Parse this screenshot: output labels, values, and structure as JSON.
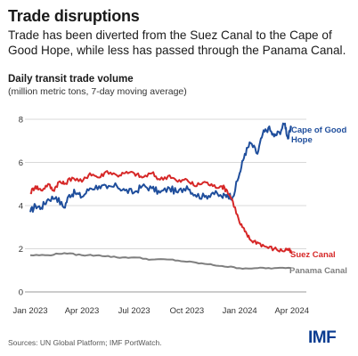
{
  "header": {
    "title": "Trade disruptions",
    "subtitle": "Trade has been diverted from the Suez Canal to the Cape of Good Hope, while less has passed through the Panama Canal."
  },
  "footer": {
    "source": "Sources: UN Global Platform; IMF PortWatch.",
    "logo_text": "IMF"
  },
  "chart_data": {
    "type": "line",
    "title": "Daily transit trade volume",
    "subtitle": "(million metric tons, 7-day moving average)",
    "x_tick_labels": [
      "Jan 2023",
      "Apr 2023",
      "Jul 2023",
      "Oct 2023",
      "Jan 2024",
      "Apr 2024"
    ],
    "xlim": [
      "2023-01-01",
      "2024-04-20"
    ],
    "ylim": [
      0,
      8
    ],
    "y_ticks": [
      0,
      2,
      4,
      6,
      8
    ],
    "grid": "horizontal",
    "legend": "direct labels at line ends",
    "series": [
      {
        "name": "Cape of Good Hope",
        "label_lines": [
          "Cape of Good",
          "Hope"
        ],
        "color": "#1f4e9c",
        "points": [
          [
            "2023-01-01",
            3.7
          ],
          [
            "2023-01-10",
            4.0
          ],
          [
            "2023-01-20",
            3.9
          ],
          [
            "2023-02-01",
            4.3
          ],
          [
            "2023-02-15",
            4.4
          ],
          [
            "2023-03-01",
            3.9
          ],
          [
            "2023-03-10",
            4.5
          ],
          [
            "2023-03-20",
            4.6
          ],
          [
            "2023-04-01",
            4.4
          ],
          [
            "2023-04-15",
            4.8
          ],
          [
            "2023-05-01",
            4.9
          ],
          [
            "2023-05-15",
            4.8
          ],
          [
            "2023-06-01",
            4.9
          ],
          [
            "2023-06-15",
            4.7
          ],
          [
            "2023-07-01",
            4.6
          ],
          [
            "2023-07-15",
            4.9
          ],
          [
            "2023-08-01",
            4.8
          ],
          [
            "2023-08-15",
            4.6
          ],
          [
            "2023-09-01",
            4.8
          ],
          [
            "2023-09-15",
            4.6
          ],
          [
            "2023-10-01",
            4.9
          ],
          [
            "2023-10-15",
            4.5
          ],
          [
            "2023-11-01",
            4.4
          ],
          [
            "2023-11-15",
            4.6
          ],
          [
            "2023-12-01",
            4.4
          ],
          [
            "2023-12-10",
            4.5
          ],
          [
            "2023-12-20",
            4.4
          ],
          [
            "2024-01-01",
            5.5
          ],
          [
            "2024-01-10",
            6.4
          ],
          [
            "2024-01-20",
            6.9
          ],
          [
            "2024-02-01",
            6.4
          ],
          [
            "2024-02-10",
            7.3
          ],
          [
            "2024-02-20",
            7.6
          ],
          [
            "2024-03-01",
            7.2
          ],
          [
            "2024-03-10",
            7.4
          ],
          [
            "2024-03-20",
            7.8
          ],
          [
            "2024-03-25",
            7.1
          ],
          [
            "2024-03-31",
            7.6
          ]
        ]
      },
      {
        "name": "Suez Canal",
        "color": "#d62828",
        "points": [
          [
            "2023-01-01",
            4.6
          ],
          [
            "2023-01-10",
            4.9
          ],
          [
            "2023-01-20",
            4.7
          ],
          [
            "2023-02-01",
            5.0
          ],
          [
            "2023-02-10",
            4.7
          ],
          [
            "2023-02-20",
            5.1
          ],
          [
            "2023-03-01",
            5.0
          ],
          [
            "2023-03-15",
            5.3
          ],
          [
            "2023-04-01",
            5.1
          ],
          [
            "2023-04-15",
            5.5
          ],
          [
            "2023-05-01",
            5.3
          ],
          [
            "2023-05-15",
            5.6
          ],
          [
            "2023-06-01",
            5.4
          ],
          [
            "2023-06-15",
            5.5
          ],
          [
            "2023-07-01",
            5.5
          ],
          [
            "2023-07-15",
            5.3
          ],
          [
            "2023-08-01",
            5.5
          ],
          [
            "2023-08-15",
            5.2
          ],
          [
            "2023-09-01",
            5.4
          ],
          [
            "2023-09-15",
            5.1
          ],
          [
            "2023-10-01",
            5.2
          ],
          [
            "2023-10-15",
            4.9
          ],
          [
            "2023-11-01",
            5.1
          ],
          [
            "2023-11-15",
            4.9
          ],
          [
            "2023-12-01",
            4.9
          ],
          [
            "2023-12-10",
            4.7
          ],
          [
            "2023-12-20",
            4.2
          ],
          [
            "2024-01-01",
            3.2
          ],
          [
            "2024-01-10",
            2.8
          ],
          [
            "2024-01-20",
            2.4
          ],
          [
            "2024-02-01",
            2.3
          ],
          [
            "2024-02-15",
            2.1
          ],
          [
            "2024-03-01",
            2.0
          ],
          [
            "2024-03-15",
            1.9
          ],
          [
            "2024-03-25",
            2.0
          ],
          [
            "2024-03-31",
            1.8
          ]
        ]
      },
      {
        "name": "Panama Canal",
        "color": "#7f7f7f",
        "points": [
          [
            "2023-01-01",
            1.7
          ],
          [
            "2023-02-01",
            1.7
          ],
          [
            "2023-03-01",
            1.8
          ],
          [
            "2023-04-01",
            1.7
          ],
          [
            "2023-05-01",
            1.7
          ],
          [
            "2023-06-01",
            1.6
          ],
          [
            "2023-07-01",
            1.6
          ],
          [
            "2023-08-01",
            1.5
          ],
          [
            "2023-09-01",
            1.5
          ],
          [
            "2023-10-01",
            1.4
          ],
          [
            "2023-11-01",
            1.3
          ],
          [
            "2023-12-01",
            1.2
          ],
          [
            "2024-01-01",
            1.1
          ],
          [
            "2024-02-01",
            1.1
          ],
          [
            "2024-03-01",
            1.1
          ],
          [
            "2024-03-31",
            1.1
          ]
        ]
      }
    ]
  }
}
